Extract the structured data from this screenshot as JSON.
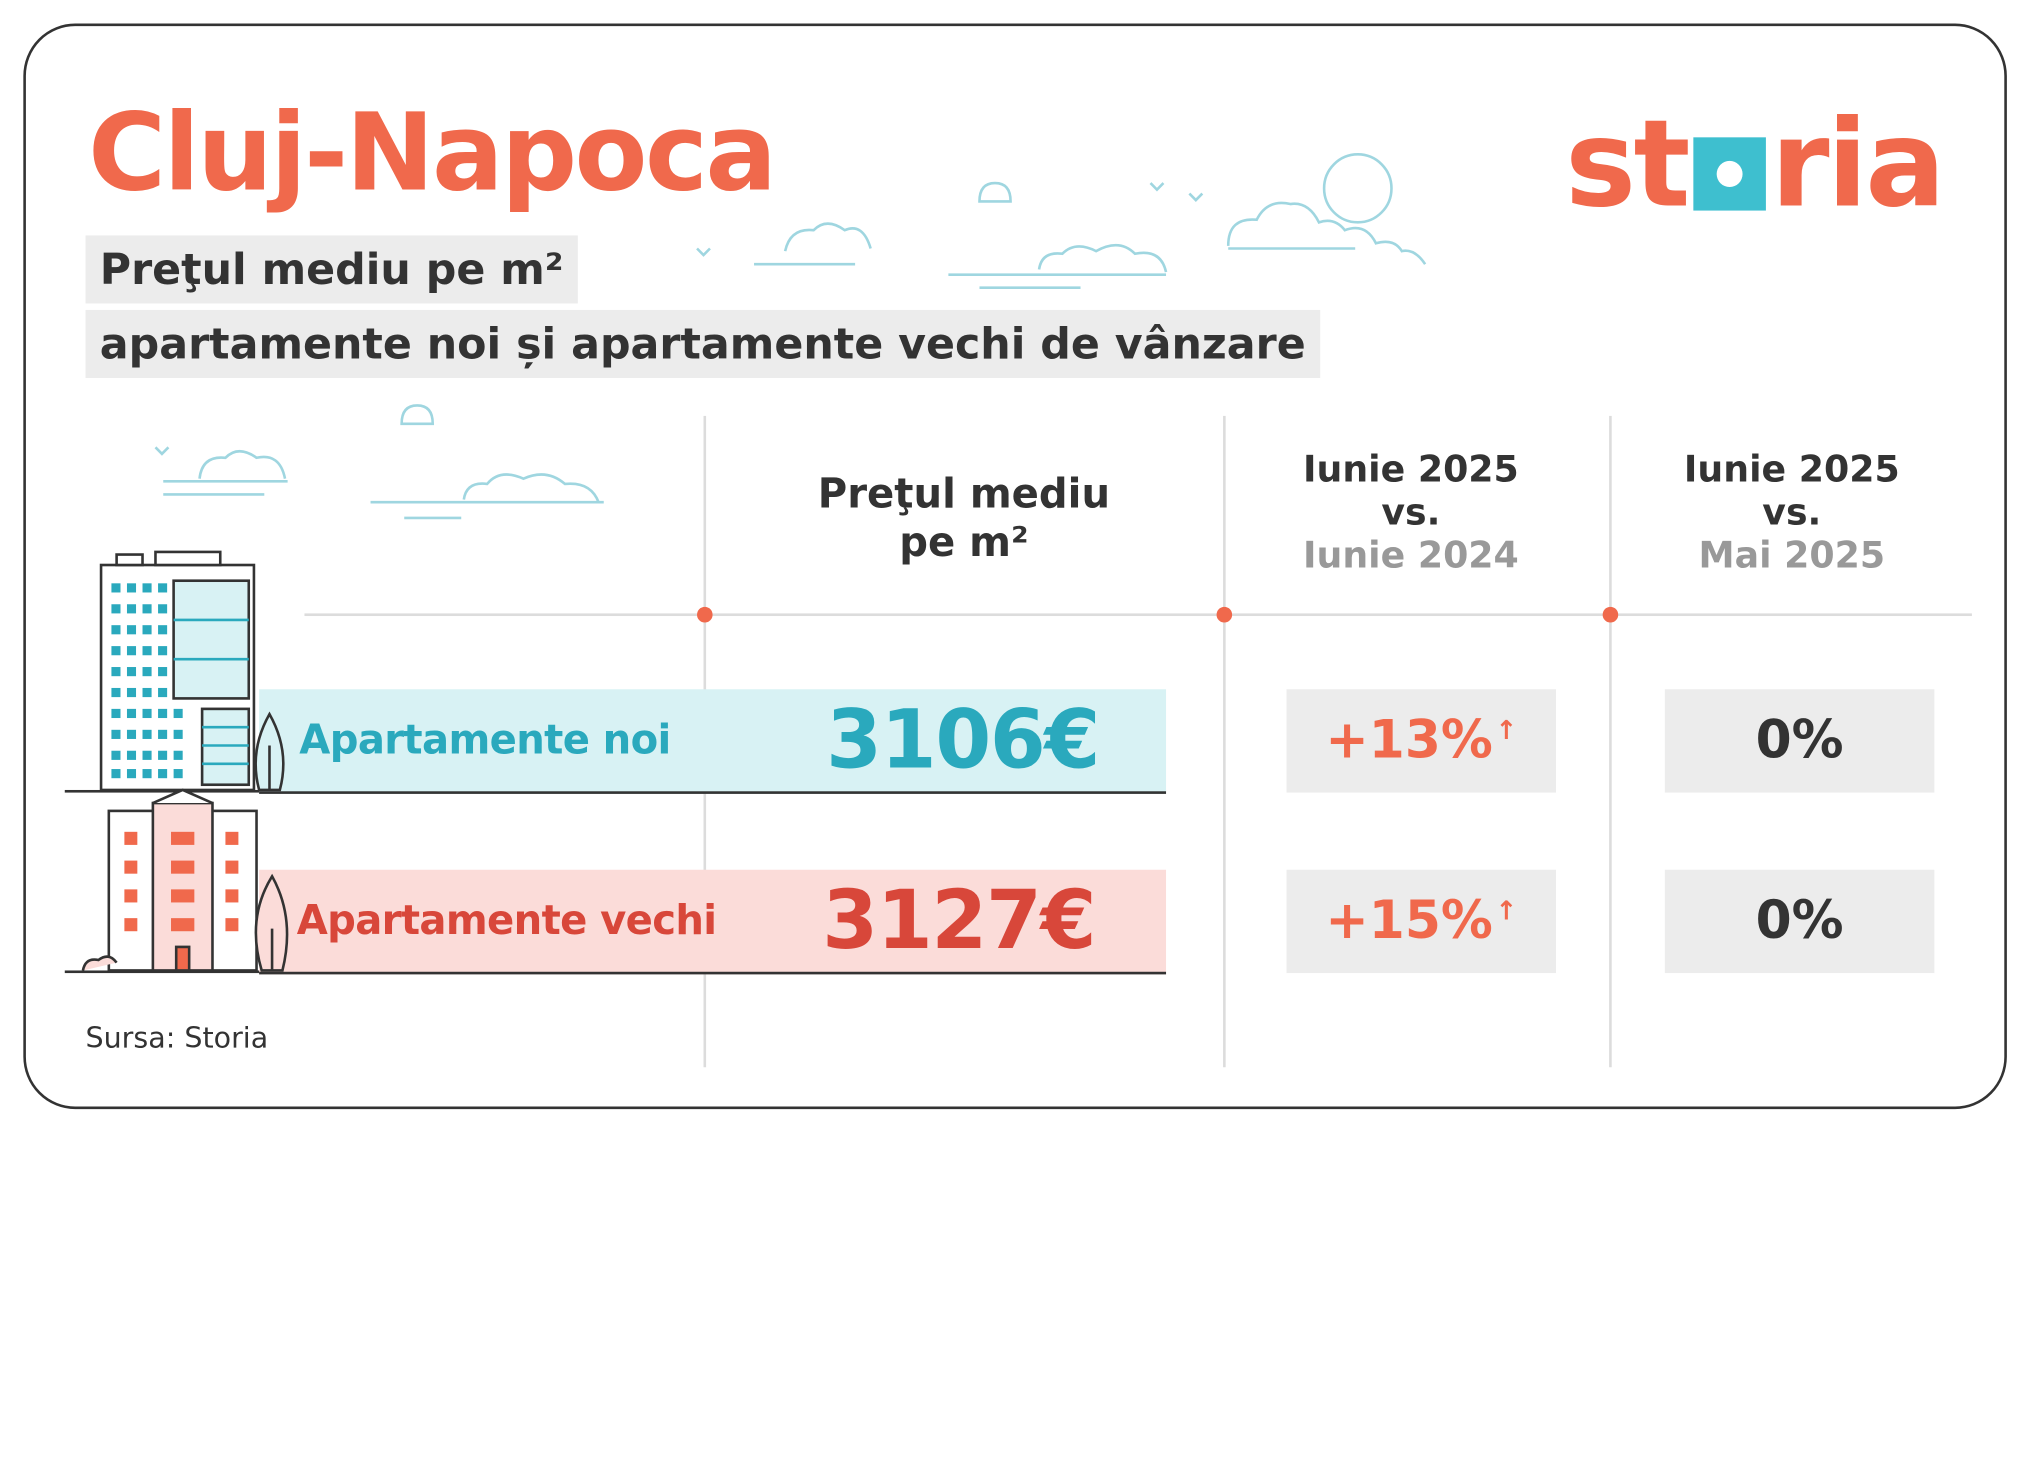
{
  "title": "Cluj-Napoca",
  "subtitle_line1": "Preţul mediu pe m²",
  "subtitle_line2": "apartamente noi și apartamente vechi de vânzare",
  "logo": {
    "text_before": "st",
    "text_after": "ria",
    "square_color": "#3ebfcf"
  },
  "columns": {
    "price": {
      "line1": "Preţul mediu",
      "line2": "pe m²"
    },
    "yoy": {
      "line1": "Iunie 2025",
      "line2": "vs.",
      "line3": "Iunie 2024"
    },
    "mom": {
      "line1": "Iunie 2025",
      "line2": "vs.",
      "line3": "Mai 2025"
    }
  },
  "rows": [
    {
      "label": "Apartamente noi",
      "price": "3106€",
      "yoy": "+13%",
      "yoy_arrow": "↑",
      "mom": "0%"
    },
    {
      "label": "Apartamente vechi",
      "price": "3127€",
      "yoy": "+15%",
      "yoy_arrow": "↑",
      "mom": "0%"
    }
  ],
  "source": "Sursa: Storia",
  "colors": {
    "accent": "#f0694c",
    "teal": "#2aa9bd",
    "red": "#d8473a",
    "dark": "#333333"
  }
}
